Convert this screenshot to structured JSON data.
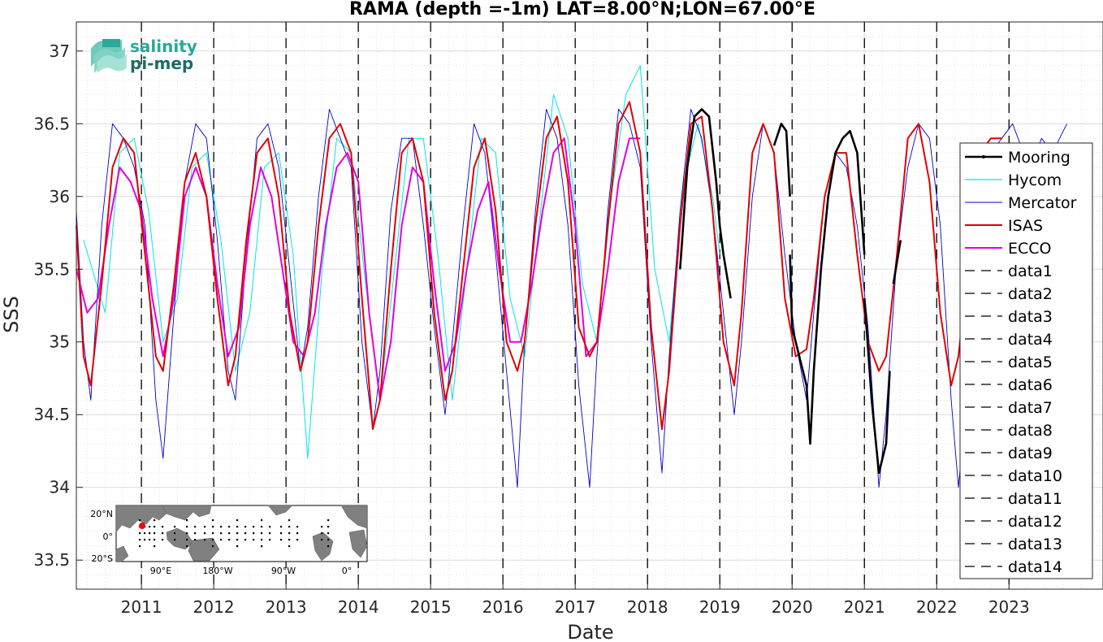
{
  "chart_data": {
    "type": "line",
    "title": "RAMA (depth =-1m) LAT=8.00°N;LON=67.00°E",
    "xlabel": "Date",
    "ylabel": "SSS",
    "xlim": [
      2010.1,
      2024.3
    ],
    "ylim": [
      33.3,
      37.2
    ],
    "x_ticks": [
      2011,
      2012,
      2013,
      2014,
      2015,
      2016,
      2017,
      2018,
      2019,
      2020,
      2021,
      2022,
      2023
    ],
    "x_tick_labels": [
      "2011",
      "2012",
      "2013",
      "2014",
      "2015",
      "2016",
      "2017",
      "2018",
      "2019",
      "2020",
      "2021",
      "2022",
      "2023"
    ],
    "y_ticks": [
      33.5,
      34,
      34.5,
      35,
      35.5,
      36,
      36.5,
      37
    ],
    "y_tick_labels": [
      "33.5",
      "34",
      "34.5",
      "35",
      "35.5",
      "36",
      "36.5",
      "37"
    ],
    "grid": true,
    "legend_position": "right",
    "vertical_dashed_lines_x": [
      2011,
      2012,
      2013,
      2014,
      2015,
      2016,
      2017,
      2018,
      2019,
      2020,
      2021,
      2022,
      2023
    ],
    "series": [
      {
        "name": "Mooring",
        "color": "#000000",
        "segments": [
          {
            "x": [
              2018.45,
              2018.55,
              2018.65,
              2018.75,
              2018.85,
              2018.95,
              2019.0
            ],
            "y": [
              35.5,
              36.2,
              36.55,
              36.6,
              36.55,
              36.1,
              35.8
            ]
          },
          {
            "x": [
              2019.0,
              2019.05,
              2019.15
            ],
            "y": [
              35.8,
              35.6,
              35.3
            ]
          },
          {
            "x": [
              2019.75,
              2019.85,
              2019.92,
              2019.97
            ],
            "y": [
              36.35,
              36.5,
              36.45,
              36.0
            ]
          },
          {
            "x": [
              2019.97,
              2020.0,
              2020.1,
              2020.2,
              2020.25,
              2020.3,
              2020.4,
              2020.5,
              2020.6,
              2020.7,
              2020.8,
              2020.9,
              2021.0
            ],
            "y": [
              35.6,
              35.1,
              34.9,
              34.7,
              34.3,
              34.8,
              35.5,
              36.0,
              36.3,
              36.4,
              36.45,
              36.3,
              35.6
            ]
          },
          {
            "x": [
              2021.0,
              2021.1,
              2021.2,
              2021.3,
              2021.35
            ],
            "y": [
              35.3,
              34.6,
              34.1,
              34.3,
              34.8
            ]
          },
          {
            "x": [
              2021.4,
              2021.5
            ],
            "y": [
              35.4,
              35.7
            ]
          }
        ]
      },
      {
        "name": "Hycom",
        "color": "#00e5e5",
        "x": [
          2010.2,
          2010.5,
          2010.7,
          2010.9,
          2011.1,
          2011.3,
          2011.5,
          2011.7,
          2011.9,
          2012.1,
          2012.3,
          2012.5,
          2012.7,
          2012.9,
          2013.1,
          2013.3,
          2013.5,
          2013.7,
          2013.9,
          2014.1,
          2014.3,
          2014.5,
          2014.7,
          2014.9,
          2015.1,
          2015.3,
          2015.5,
          2015.7,
          2015.9,
          2016.1,
          2016.3,
          2016.5,
          2016.7,
          2016.9,
          2017.1,
          2017.3,
          2017.5,
          2017.7,
          2017.9,
          2018.1,
          2018.3,
          2018.5,
          2018.7,
          2018.9,
          2019.0
        ],
        "y": [
          35.7,
          35.2,
          36.3,
          36.4,
          35.9,
          35.0,
          35.3,
          36.2,
          36.3,
          35.7,
          34.8,
          35.2,
          36.2,
          36.3,
          35.6,
          34.2,
          35.5,
          36.4,
          36.3,
          35.4,
          34.6,
          35.5,
          36.4,
          36.4,
          35.6,
          34.6,
          35.5,
          36.4,
          36.3,
          35.3,
          34.9,
          35.8,
          36.7,
          36.4,
          35.4,
          35.0,
          36.0,
          36.7,
          36.9,
          35.5,
          35.0,
          36.1,
          36.5,
          36.0,
          35.6
        ]
      },
      {
        "name": "Mercator",
        "color": "#0000cd",
        "x": [
          2010.1,
          2010.2,
          2010.3,
          2010.45,
          2010.6,
          2010.75,
          2010.9,
          2011.05,
          2011.2,
          2011.3,
          2011.45,
          2011.6,
          2011.75,
          2011.9,
          2012.05,
          2012.2,
          2012.3,
          2012.45,
          2012.6,
          2012.75,
          2012.9,
          2013.05,
          2013.2,
          2013.3,
          2013.45,
          2013.6,
          2013.75,
          2013.9,
          2014.05,
          2014.2,
          2014.3,
          2014.45,
          2014.6,
          2014.75,
          2014.9,
          2015.05,
          2015.2,
          2015.3,
          2015.45,
          2015.6,
          2015.75,
          2015.9,
          2016.05,
          2016.2,
          2016.3,
          2016.45,
          2016.6,
          2016.75,
          2016.9,
          2017.05,
          2017.2,
          2017.3,
          2017.45,
          2017.6,
          2017.75,
          2017.9,
          2018.05,
          2018.2,
          2018.3,
          2018.45,
          2018.6,
          2018.75,
          2018.9,
          2019.05,
          2019.2,
          2019.3,
          2019.45,
          2019.6,
          2019.75,
          2019.9,
          2020.05,
          2020.2,
          2020.3,
          2020.45,
          2020.6,
          2020.75,
          2020.9,
          2021.05,
          2021.2,
          2021.3,
          2021.45,
          2021.6,
          2021.75,
          2021.9,
          2022.05,
          2022.2,
          2022.3,
          2022.45,
          2022.6,
          2022.75,
          2022.9,
          2023.05,
          2023.2,
          2023.3,
          2023.45,
          2023.6,
          2023.8
        ],
        "y": [
          35.9,
          35.0,
          34.6,
          35.8,
          36.5,
          36.4,
          36.2,
          35.8,
          34.6,
          34.2,
          35.2,
          36.1,
          36.5,
          36.4,
          35.7,
          34.8,
          34.6,
          35.6,
          36.4,
          36.5,
          36.2,
          35.5,
          34.8,
          35.1,
          36.0,
          36.6,
          36.4,
          36.2,
          35.0,
          34.4,
          34.8,
          35.9,
          36.4,
          36.4,
          35.8,
          35.1,
          34.5,
          35.0,
          35.8,
          36.5,
          36.3,
          35.6,
          34.8,
          34.0,
          35.0,
          35.9,
          36.6,
          36.4,
          35.8,
          34.7,
          34.0,
          34.9,
          35.9,
          36.6,
          36.5,
          36.2,
          35.0,
          34.1,
          34.9,
          35.9,
          36.6,
          36.4,
          35.9,
          35.2,
          34.5,
          35.0,
          36.0,
          36.5,
          36.3,
          35.6,
          35.0,
          34.6,
          35.2,
          36.0,
          36.3,
          36.2,
          35.8,
          35.1,
          34.0,
          34.5,
          35.6,
          36.2,
          36.5,
          36.4,
          35.8,
          34.6,
          34.0,
          34.8,
          35.8,
          36.3,
          36.4,
          36.5,
          36.3,
          36.2,
          36.4,
          36.3,
          36.5
        ]
      },
      {
        "name": "ISAS",
        "color": "#e00000",
        "x": [
          2010.1,
          2010.2,
          2010.3,
          2010.45,
          2010.6,
          2010.75,
          2010.9,
          2011.05,
          2011.2,
          2011.3,
          2011.45,
          2011.6,
          2011.75,
          2011.9,
          2012.05,
          2012.2,
          2012.3,
          2012.45,
          2012.6,
          2012.75,
          2012.9,
          2013.05,
          2013.2,
          2013.3,
          2013.45,
          2013.6,
          2013.75,
          2013.9,
          2014.05,
          2014.2,
          2014.3,
          2014.45,
          2014.6,
          2014.75,
          2014.9,
          2015.05,
          2015.2,
          2015.3,
          2015.45,
          2015.6,
          2015.75,
          2015.9,
          2016.05,
          2016.2,
          2016.3,
          2016.45,
          2016.6,
          2016.75,
          2016.9,
          2017.05,
          2017.2,
          2017.3,
          2017.45,
          2017.6,
          2017.75,
          2017.9,
          2018.05,
          2018.2,
          2018.3,
          2018.45,
          2018.6,
          2018.75,
          2018.9,
          2019.05,
          2019.2,
          2019.3,
          2019.45,
          2019.6,
          2019.75,
          2019.9,
          2020.05,
          2020.2,
          2020.3,
          2020.45,
          2020.6,
          2020.75,
          2020.9,
          2021.05,
          2021.2,
          2021.3,
          2021.45,
          2021.6,
          2021.75,
          2021.9,
          2022.05,
          2022.2,
          2022.3,
          2022.45,
          2022.6,
          2022.75,
          2022.9
        ],
        "y": [
          35.8,
          34.9,
          34.7,
          35.4,
          36.2,
          36.4,
          36.3,
          35.6,
          34.9,
          34.8,
          35.4,
          36.1,
          36.3,
          36.0,
          35.3,
          34.7,
          34.9,
          35.7,
          36.3,
          36.4,
          36.0,
          35.2,
          34.8,
          35.0,
          35.8,
          36.4,
          36.5,
          36.3,
          35.3,
          34.4,
          34.6,
          35.5,
          36.3,
          36.4,
          36.1,
          35.2,
          34.6,
          34.8,
          35.5,
          36.2,
          36.4,
          35.9,
          35.0,
          34.8,
          35.0,
          35.8,
          36.4,
          36.55,
          36.1,
          35.1,
          34.9,
          35.0,
          35.8,
          36.5,
          36.65,
          36.3,
          35.1,
          34.4,
          34.8,
          35.8,
          36.5,
          36.55,
          35.9,
          35.0,
          34.7,
          35.2,
          36.3,
          36.5,
          36.3,
          35.3,
          34.9,
          34.95,
          35.3,
          36.0,
          36.3,
          36.3,
          35.6,
          35.0,
          34.8,
          34.9,
          35.6,
          36.4,
          36.5,
          36.1,
          35.2,
          34.7,
          34.9,
          35.6,
          36.3,
          36.4,
          36.4
        ]
      },
      {
        "name": "ECCO",
        "color": "#e000e0",
        "x": [
          2010.1,
          2010.25,
          2010.4,
          2010.55,
          2010.7,
          2010.85,
          2011.0,
          2011.15,
          2011.3,
          2011.45,
          2011.6,
          2011.75,
          2011.9,
          2012.05,
          2012.2,
          2012.35,
          2012.5,
          2012.65,
          2012.8,
          2012.95,
          2013.1,
          2013.25,
          2013.4,
          2013.55,
          2013.7,
          2013.85,
          2014.0,
          2014.15,
          2014.3,
          2014.45,
          2014.6,
          2014.75,
          2014.9,
          2015.05,
          2015.2,
          2015.35,
          2015.5,
          2015.65,
          2015.8,
          2015.95,
          2016.1,
          2016.25,
          2016.4,
          2016.55,
          2016.7,
          2016.85,
          2017.0,
          2017.15,
          2017.3,
          2017.45,
          2017.6,
          2017.75,
          2017.9
        ],
        "y": [
          35.5,
          35.2,
          35.3,
          35.8,
          36.2,
          36.1,
          35.9,
          35.3,
          34.9,
          35.3,
          36.0,
          36.2,
          36.0,
          35.4,
          34.9,
          35.1,
          35.8,
          36.2,
          36.0,
          35.5,
          35.0,
          34.9,
          35.2,
          35.8,
          36.2,
          36.3,
          36.1,
          35.2,
          34.6,
          35.0,
          35.8,
          36.2,
          36.1,
          35.4,
          34.8,
          35.0,
          35.5,
          35.9,
          36.1,
          35.5,
          35.0,
          35.0,
          35.4,
          35.9,
          36.3,
          36.4,
          35.8,
          34.9,
          35.0,
          35.5,
          36.1,
          36.4,
          36.4
        ]
      }
    ],
    "legend_entries": [
      "Mooring",
      "Hycom",
      "Mercator",
      "ISAS",
      "ECCO",
      "data1",
      "data2",
      "data3",
      "data4",
      "data5",
      "data6",
      "data7",
      "data8",
      "data9",
      "data10",
      "data11",
      "data12",
      "data13",
      "data14"
    ]
  },
  "logo": {
    "line1": "salinity",
    "line2": "pi-mep",
    "color1": "#2aa89a",
    "color2": "#1f6b66"
  },
  "inset_map": {
    "lat_labels": [
      "20°N",
      "0°",
      "20°S"
    ],
    "lon_labels": [
      "90°E",
      "180°W",
      "90°W",
      "0°"
    ],
    "marker_color": "#ff0000",
    "land_color": "#808080",
    "ocean_color": "#ffffff"
  }
}
